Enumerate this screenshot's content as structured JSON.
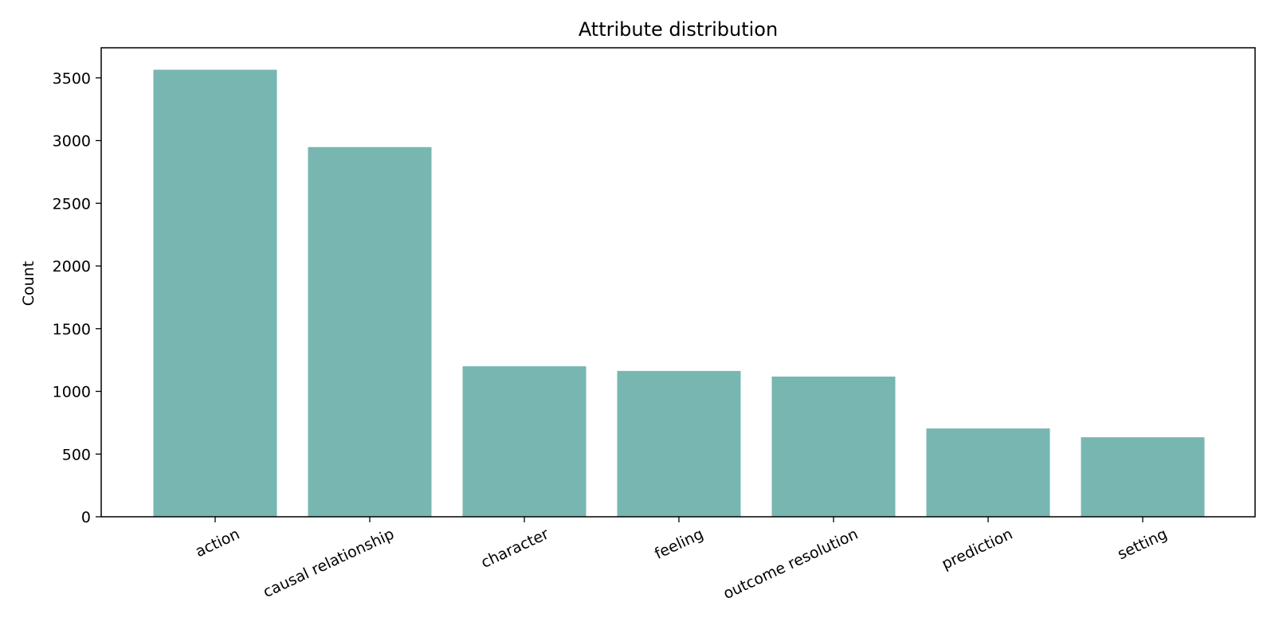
{
  "chart_data": {
    "type": "bar",
    "title": "Attribute distribution",
    "xlabel": "",
    "ylabel": "Count",
    "categories": [
      "action",
      "causal relationship",
      "character",
      "feeling",
      "outcome resolution",
      "prediction",
      "setting"
    ],
    "values": [
      3565,
      2948,
      1200,
      1163,
      1118,
      704,
      634
    ],
    "ylim": [
      0,
      3740
    ],
    "yticks": [
      0,
      500,
      1000,
      1500,
      2000,
      2500,
      3000,
      3500
    ],
    "bar_color": "#78b6b1",
    "x_tick_rotation_deg": -25,
    "grid": false,
    "legend": "none"
  }
}
